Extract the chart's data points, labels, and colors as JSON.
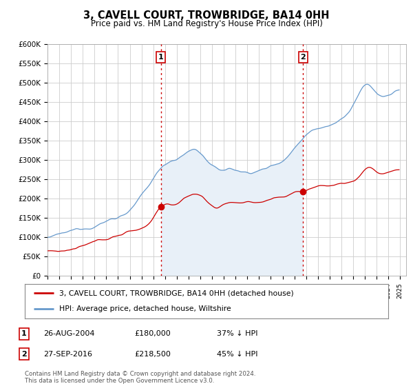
{
  "title": "3, CAVELL COURT, TROWBRIDGE, BA14 0HH",
  "subtitle": "Price paid vs. HM Land Registry's House Price Index (HPI)",
  "background_color": "#ffffff",
  "plot_bg_color": "#ffffff",
  "ylim": [
    0,
    600000
  ],
  "yticks": [
    0,
    50000,
    100000,
    150000,
    200000,
    250000,
    300000,
    350000,
    400000,
    450000,
    500000,
    550000,
    600000
  ],
  "xlim_start": 1995.0,
  "xlim_end": 2025.5,
  "marker1_x": 2004.65,
  "marker1_y": 180000,
  "marker2_x": 2016.75,
  "marker2_y": 218500,
  "legend_label_red": "3, CAVELL COURT, TROWBRIDGE, BA14 0HH (detached house)",
  "legend_label_blue": "HPI: Average price, detached house, Wiltshire",
  "footer": "Contains HM Land Registry data © Crown copyright and database right 2024.\nThis data is licensed under the Open Government Licence v3.0.",
  "red_color": "#cc0000",
  "blue_color": "#6699cc",
  "blue_fill": "#ddeeff"
}
